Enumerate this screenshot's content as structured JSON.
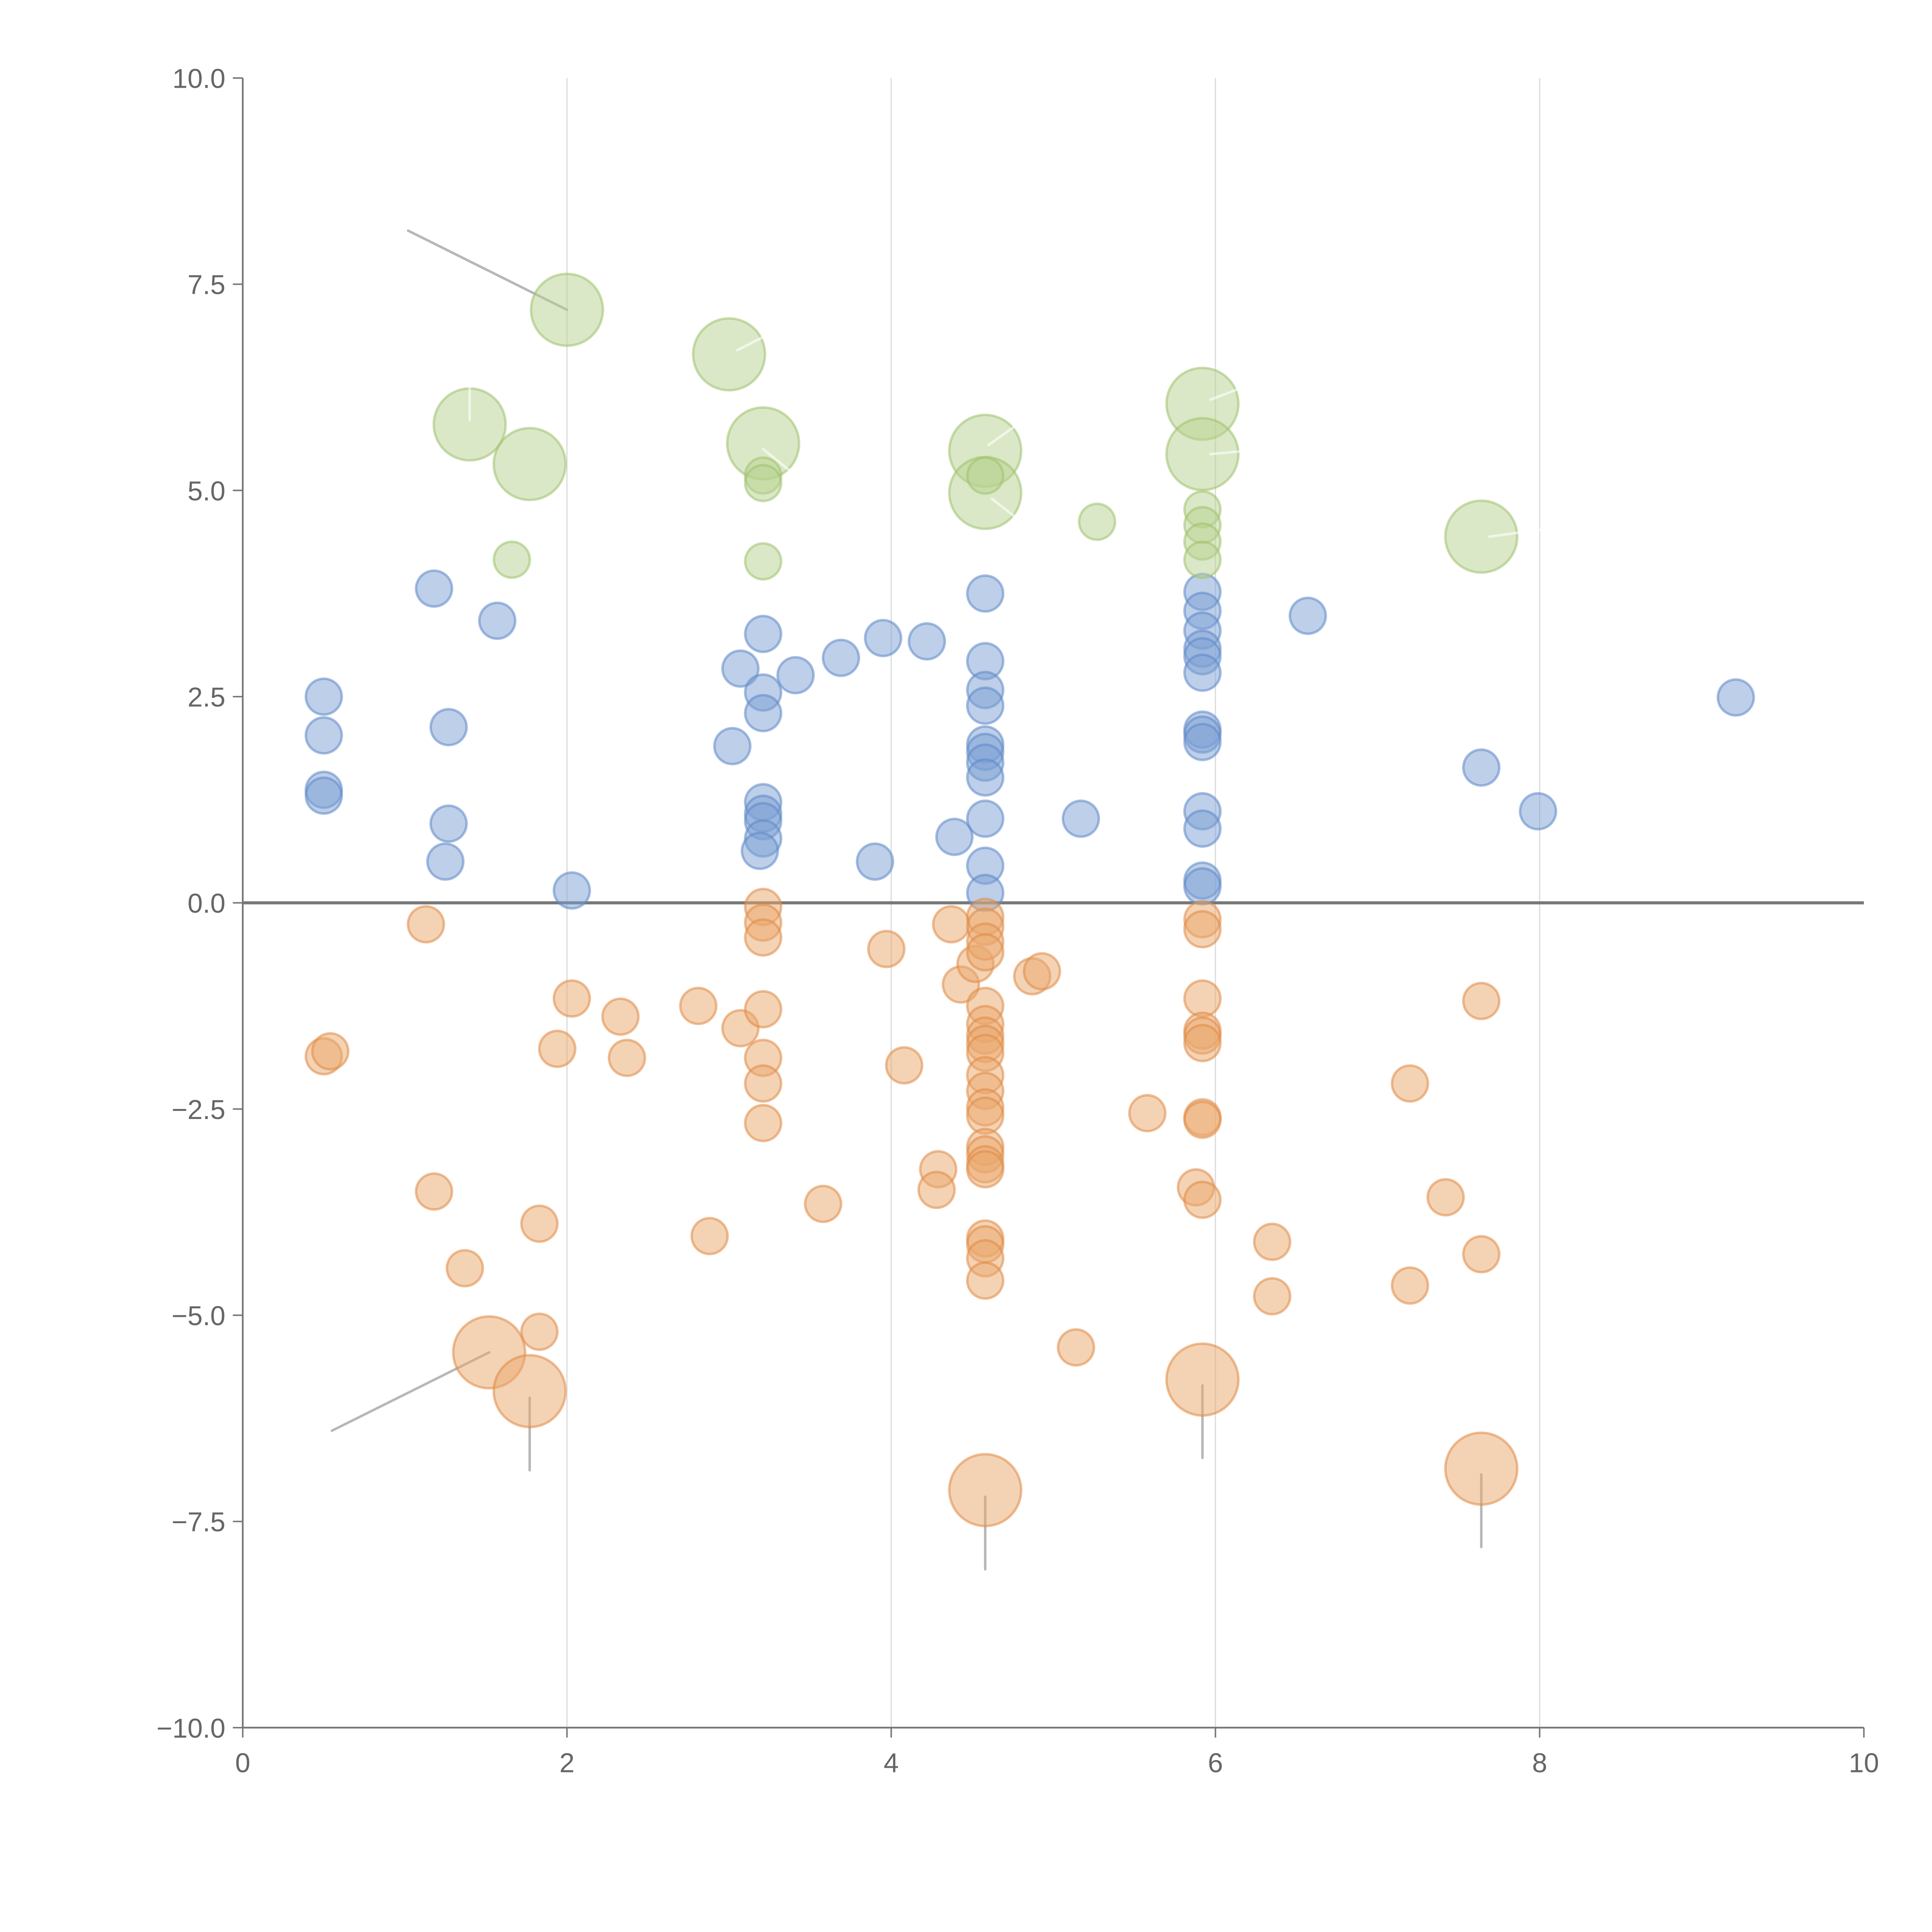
{
  "chart_data": {
    "type": "scatter",
    "title": "",
    "xlabel": "",
    "ylabel": "",
    "xlim": [
      0,
      10
    ],
    "ylim": [
      -10,
      10
    ],
    "xticks": [
      0,
      2,
      4,
      6,
      8,
      10
    ],
    "yticks": [
      -10,
      -7.5,
      -5,
      -2.5,
      0,
      2.5,
      5,
      7.5,
      10
    ],
    "xtick_labels": [
      "0",
      "2",
      "4",
      "6",
      "8",
      "10"
    ],
    "ytick_labels": [
      "−10.0",
      "−7.5",
      "−5.0",
      "−2.5",
      "0.0",
      "2.5",
      "5.0",
      "7.5",
      "10.0"
    ],
    "grid": "vertical",
    "reference_line_y": 0,
    "series": [
      {
        "name": "blue",
        "color": "#7b9fd3",
        "stroke": "#5f88c8",
        "points": [
          [
            0.5,
            2.5,
            1
          ],
          [
            0.5,
            2.03,
            1
          ],
          [
            0.5,
            1.37,
            1
          ],
          [
            0.5,
            1.3,
            1
          ],
          [
            1.18,
            3.81,
            1
          ],
          [
            1.57,
            3.42,
            1
          ],
          [
            1.27,
            2.13,
            1
          ],
          [
            1.27,
            0.96,
            1
          ],
          [
            1.25,
            0.5,
            1
          ],
          [
            2.03,
            0.15,
            1
          ],
          [
            3.07,
            2.84,
            1
          ],
          [
            3.21,
            3.26,
            1
          ],
          [
            3.21,
            2.55,
            1
          ],
          [
            3.21,
            2.3,
            1
          ],
          [
            3.02,
            1.9,
            1
          ],
          [
            3.41,
            2.76,
            1
          ],
          [
            3.69,
            2.97,
            1
          ],
          [
            3.95,
            3.21,
            1
          ],
          [
            4.22,
            3.17,
            1
          ],
          [
            3.21,
            1.22,
            1
          ],
          [
            3.21,
            1.08,
            1
          ],
          [
            3.21,
            0.99,
            1
          ],
          [
            3.21,
            0.78,
            1
          ],
          [
            3.19,
            0.63,
            1
          ],
          [
            3.9,
            0.5,
            1
          ],
          [
            4.39,
            0.8,
            1
          ],
          [
            4.58,
            3.75,
            1
          ],
          [
            4.58,
            2.93,
            1
          ],
          [
            4.58,
            2.58,
            1
          ],
          [
            4.58,
            2.39,
            1
          ],
          [
            4.58,
            1.92,
            1
          ],
          [
            4.58,
            1.83,
            1
          ],
          [
            4.58,
            1.7,
            1
          ],
          [
            4.58,
            1.52,
            1
          ],
          [
            4.58,
            1.02,
            1
          ],
          [
            4.58,
            0.45,
            1
          ],
          [
            4.58,
            0.12,
            1
          ],
          [
            5.17,
            1.02,
            1
          ],
          [
            5.92,
            3.77,
            1
          ],
          [
            5.92,
            3.54,
            1
          ],
          [
            5.92,
            3.3,
            1
          ],
          [
            5.92,
            3.08,
            1
          ],
          [
            5.92,
            2.99,
            1
          ],
          [
            5.92,
            2.79,
            1
          ],
          [
            5.92,
            2.1,
            1
          ],
          [
            5.92,
            2.04,
            1
          ],
          [
            5.92,
            1.95,
            1
          ],
          [
            5.92,
            1.11,
            1
          ],
          [
            5.92,
            0.9,
            1
          ],
          [
            5.92,
            0.27,
            1
          ],
          [
            5.92,
            0.2,
            1
          ],
          [
            6.57,
            3.48,
            1
          ],
          [
            7.64,
            1.64,
            1
          ],
          [
            7.99,
            1.11,
            1
          ],
          [
            9.21,
            2.49,
            1
          ]
        ]
      },
      {
        "name": "green",
        "color": "#b7d18f",
        "stroke": "#9fc16e",
        "points": [
          [
            2.0,
            7.19,
            2
          ],
          [
            3.0,
            6.65,
            2
          ],
          [
            1.4,
            5.8,
            2
          ],
          [
            1.77,
            5.32,
            2
          ],
          [
            3.21,
            5.57,
            2
          ],
          [
            4.58,
            5.48,
            2
          ],
          [
            4.58,
            4.97,
            2
          ],
          [
            5.92,
            6.05,
            2
          ],
          [
            5.92,
            5.44,
            2
          ],
          [
            7.64,
            4.44,
            2
          ],
          [
            1.66,
            4.16,
            1
          ],
          [
            3.21,
            5.18,
            1
          ],
          [
            3.21,
            5.09,
            1
          ],
          [
            3.21,
            4.14,
            1
          ],
          [
            4.58,
            5.18,
            1
          ],
          [
            5.27,
            4.62,
            1
          ],
          [
            5.92,
            4.77,
            1
          ],
          [
            5.92,
            4.58,
            1
          ],
          [
            5.92,
            4.38,
            1
          ],
          [
            5.92,
            4.16,
            1
          ]
        ]
      },
      {
        "name": "orange",
        "color": "#eaa76c",
        "stroke": "#e08a45",
        "points": [
          [
            1.13,
            -0.26,
            1
          ],
          [
            0.5,
            -1.86,
            1
          ],
          [
            0.54,
            -1.8,
            1
          ],
          [
            1.94,
            -1.77,
            1
          ],
          [
            2.03,
            -1.16,
            1
          ],
          [
            2.33,
            -1.38,
            1
          ],
          [
            2.37,
            -1.88,
            1
          ],
          [
            2.81,
            -1.25,
            1
          ],
          [
            3.07,
            -1.52,
            1
          ],
          [
            3.21,
            -0.05,
            1
          ],
          [
            3.21,
            -0.24,
            1
          ],
          [
            3.21,
            -0.42,
            1
          ],
          [
            3.21,
            -1.29,
            1
          ],
          [
            3.21,
            -1.88,
            1
          ],
          [
            3.21,
            -2.19,
            1
          ],
          [
            3.21,
            -2.67,
            1
          ],
          [
            3.97,
            -0.56,
            1
          ],
          [
            4.08,
            -1.97,
            1
          ],
          [
            4.37,
            -0.26,
            1
          ],
          [
            4.43,
            -0.99,
            1
          ],
          [
            4.52,
            -0.74,
            1
          ],
          [
            4.58,
            -0.17,
            1
          ],
          [
            4.58,
            -0.29,
            1
          ],
          [
            4.58,
            -0.47,
            1
          ],
          [
            4.58,
            -0.6,
            1
          ],
          [
            4.58,
            -1.25,
            1
          ],
          [
            4.58,
            -1.47,
            1
          ],
          [
            4.58,
            -1.61,
            1
          ],
          [
            4.58,
            -1.71,
            1
          ],
          [
            4.58,
            -1.82,
            1
          ],
          [
            4.58,
            -2.09,
            1
          ],
          [
            4.58,
            -2.28,
            1
          ],
          [
            4.58,
            -2.48,
            1
          ],
          [
            4.58,
            -2.58,
            1
          ],
          [
            4.58,
            -2.96,
            1
          ],
          [
            4.58,
            -3.05,
            1
          ],
          [
            4.58,
            -3.17,
            1
          ],
          [
            4.58,
            -3.23,
            1
          ],
          [
            4.58,
            -4.07,
            1
          ],
          [
            4.58,
            -4.14,
            1
          ],
          [
            4.58,
            -4.31,
            1
          ],
          [
            4.58,
            -4.58,
            1
          ],
          [
            4.87,
            -0.89,
            1
          ],
          [
            4.93,
            -0.83,
            1
          ],
          [
            4.29,
            -3.23,
            1
          ],
          [
            4.28,
            -3.48,
            1
          ],
          [
            3.58,
            -3.65,
            1
          ],
          [
            2.88,
            -4.04,
            1
          ],
          [
            1.83,
            -3.89,
            1
          ],
          [
            1.18,
            -3.5,
            1
          ],
          [
            1.37,
            -4.43,
            1
          ],
          [
            1.83,
            -5.2,
            1
          ],
          [
            5.14,
            -5.39,
            1
          ],
          [
            5.58,
            -2.55,
            1
          ],
          [
            5.92,
            -0.2,
            1
          ],
          [
            5.92,
            -0.32,
            1
          ],
          [
            5.92,
            -1.16,
            1
          ],
          [
            5.92,
            -1.55,
            1
          ],
          [
            5.92,
            -1.61,
            1
          ],
          [
            5.92,
            -1.7,
            1
          ],
          [
            5.92,
            -2.6,
            1
          ],
          [
            5.92,
            -2.63,
            1
          ],
          [
            5.88,
            -3.45,
            1
          ],
          [
            5.92,
            -3.6,
            1
          ],
          [
            6.35,
            -4.11,
            1
          ],
          [
            6.35,
            -4.77,
            1
          ],
          [
            7.2,
            -2.19,
            1
          ],
          [
            7.2,
            -4.64,
            1
          ],
          [
            7.42,
            -3.57,
            1
          ],
          [
            7.64,
            -1.19,
            1
          ],
          [
            7.64,
            -4.26,
            1
          ],
          [
            1.52,
            -5.45,
            2
          ],
          [
            1.77,
            -5.92,
            2
          ],
          [
            4.58,
            -7.12,
            2
          ],
          [
            5.92,
            -5.78,
            2
          ],
          [
            7.64,
            -6.86,
            2
          ]
        ]
      }
    ],
    "leader_lines": [
      {
        "from": [
          2.0,
          7.19
        ],
        "to": [
          1.02,
          8.15
        ],
        "color": "#999999"
      },
      {
        "from": [
          1.52,
          -5.45
        ],
        "to": [
          0.55,
          -6.4
        ],
        "color": "#999999"
      },
      {
        "from": [
          1.77,
          -6.0
        ],
        "to": [
          1.77,
          -6.88
        ],
        "color": "#999999"
      },
      {
        "from": [
          4.58,
          -7.2
        ],
        "to": [
          4.58,
          -8.08
        ],
        "color": "#999999"
      },
      {
        "from": [
          5.92,
          -5.85
        ],
        "to": [
          5.92,
          -6.73
        ],
        "color": "#999999"
      },
      {
        "from": [
          7.64,
          -6.93
        ],
        "to": [
          7.64,
          -7.81
        ],
        "color": "#999999"
      },
      {
        "from": [
          1.4,
          5.85
        ],
        "to": [
          1.4,
          6.25
        ],
        "color": "#ffffff"
      },
      {
        "from": [
          3.05,
          6.7
        ],
        "to": [
          3.3,
          6.95
        ],
        "color": "#ffffff"
      },
      {
        "from": [
          3.21,
          5.5
        ],
        "to": [
          3.4,
          5.2
        ],
        "color": "#ffffff"
      },
      {
        "from": [
          4.6,
          5.55
        ],
        "to": [
          4.85,
          5.9
        ],
        "color": "#ffffff"
      },
      {
        "from": [
          4.62,
          4.9
        ],
        "to": [
          4.85,
          4.55
        ],
        "color": "#ffffff"
      },
      {
        "from": [
          5.97,
          6.1
        ],
        "to": [
          6.3,
          6.35
        ],
        "color": "#ffffff"
      },
      {
        "from": [
          5.97,
          5.44
        ],
        "to": [
          6.3,
          5.5
        ],
        "color": "#ffffff"
      },
      {
        "from": [
          7.69,
          4.44
        ],
        "to": [
          8.1,
          4.55
        ],
        "color": "#ffffff"
      }
    ]
  }
}
